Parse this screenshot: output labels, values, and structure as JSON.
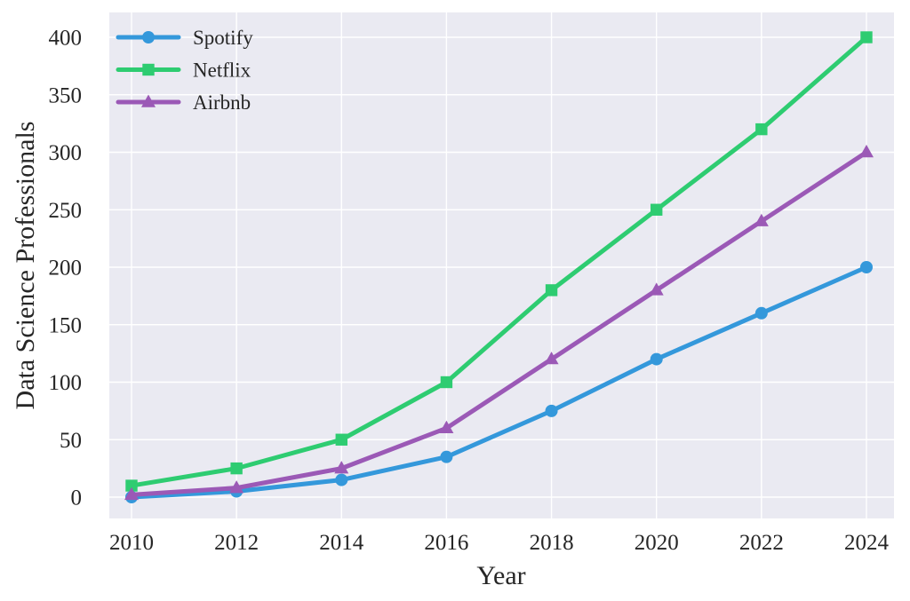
{
  "figure": {
    "plot_background": "#eaeaf2",
    "grid_color": "#ffffff",
    "text_color": "#262626",
    "outer_background": "#ffffff"
  },
  "chart_data": {
    "type": "line",
    "title": "",
    "xlabel": "Year",
    "ylabel": "Data Science Professionals",
    "x": [
      2010,
      2012,
      2014,
      2016,
      2018,
      2020,
      2022,
      2024
    ],
    "x_tick_labels": [
      "2010",
      "2012",
      "2014",
      "2016",
      "2018",
      "2020",
      "2022",
      "2024"
    ],
    "y_ticks": [
      0,
      50,
      100,
      150,
      200,
      250,
      300,
      350,
      400
    ],
    "y_tick_labels": [
      "0",
      "50",
      "100",
      "150",
      "200",
      "250",
      "300",
      "350",
      "400"
    ],
    "ylim": [
      0,
      400
    ],
    "xlim": [
      2010,
      2024
    ],
    "grid": true,
    "legend_position": "upper left",
    "series": [
      {
        "name": "Spotify",
        "color": "#3498db",
        "marker": "circle",
        "values": [
          0,
          5,
          15,
          35,
          75,
          120,
          160,
          200
        ]
      },
      {
        "name": "Netflix",
        "color": "#2ecc71",
        "marker": "square",
        "values": [
          10,
          25,
          50,
          100,
          180,
          250,
          320,
          400
        ]
      },
      {
        "name": "Airbnb",
        "color": "#9b59b6",
        "marker": "triangle",
        "values": [
          2,
          8,
          25,
          60,
          120,
          180,
          240,
          300
        ]
      }
    ]
  }
}
